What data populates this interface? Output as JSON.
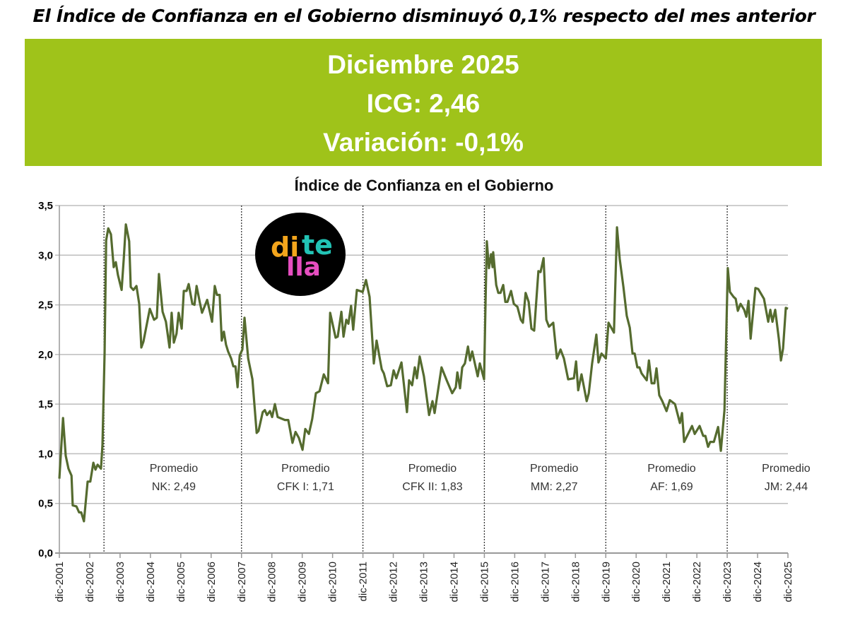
{
  "headline": "El Índice de Confianza en el Gobierno disminuyó 0,1% respecto del mes anterior",
  "banner": {
    "line1": "Diciembre 2025",
    "line2": "ICG: 2,46",
    "line3": "Variación: -0,1%",
    "color": "#9fc31a"
  },
  "logo": {
    "part1": "di",
    "part2": "te",
    "part3": "lla",
    "colors": [
      "#f4a51c",
      "#22c3b5",
      "#e64ec0"
    ]
  },
  "chart_data": {
    "type": "line",
    "title": "Índice de Confianza en el Gobierno",
    "xlabel": "",
    "ylabel": "",
    "ylim": [
      0,
      3.5
    ],
    "xlim": [
      2001.92,
      2025.92
    ],
    "yticks": [
      0,
      0.5,
      1.0,
      1.5,
      2.0,
      2.5,
      3.0,
      3.5
    ],
    "ytick_labels": [
      "0,0",
      "0,5",
      "1,0",
      "1,5",
      "2,0",
      "2,5",
      "3,0",
      "3,5"
    ],
    "xtick_labels": [
      "dic-2001",
      "dic-2002",
      "dic-2003",
      "dic-2004",
      "dic-2005",
      "dic-2006",
      "dic-2007",
      "dic-2008",
      "dic-2009",
      "dic-2010",
      "dic-2011",
      "dic-2012",
      "dic-2013",
      "dic-2014",
      "dic-2015",
      "dic-2016",
      "dic-2017",
      "dic-2018",
      "dic-2019",
      "dic-2020",
      "dic-2021",
      "dic-2022",
      "dic-2023",
      "dic-2024",
      "dic-2025"
    ],
    "grid": "horizontal",
    "line_color": "#556b2f",
    "period_separators": [
      2003.39,
      2007.92,
      2011.92,
      2015.92,
      2019.92,
      2023.92
    ],
    "annotations": [
      {
        "x": 2005.69,
        "line1": "Promedio",
        "line2": "NK: 2,49"
      },
      {
        "x": 2010.03,
        "line1": "Promedio",
        "line2": "CFK I: 1,71"
      },
      {
        "x": 2014.21,
        "line1": "Promedio",
        "line2": "CFK II: 1,83"
      },
      {
        "x": 2018.22,
        "line1": "Promedio",
        "line2": "MM: 2,27"
      },
      {
        "x": 2022.09,
        "line1": "Promedio",
        "line2": "AF: 1,69"
      },
      {
        "x": 2025.86,
        "line1": "Promedio",
        "line2": "JM: 2,44"
      }
    ],
    "series": [
      {
        "name": "ICG",
        "points": [
          [
            2001.92,
            0.75
          ],
          [
            2002.04,
            1.36
          ],
          [
            2002.13,
            0.98
          ],
          [
            2002.22,
            0.85
          ],
          [
            2002.32,
            0.78
          ],
          [
            2002.36,
            0.48
          ],
          [
            2002.48,
            0.47
          ],
          [
            2002.57,
            0.41
          ],
          [
            2002.64,
            0.41
          ],
          [
            2002.73,
            0.32
          ],
          [
            2002.85,
            0.72
          ],
          [
            2002.94,
            0.72
          ],
          [
            2003.04,
            0.91
          ],
          [
            2003.11,
            0.84
          ],
          [
            2003.18,
            0.89
          ],
          [
            2003.29,
            0.85
          ],
          [
            2003.34,
            1.09
          ],
          [
            2003.41,
            2.01
          ],
          [
            2003.46,
            3.15
          ],
          [
            2003.53,
            3.27
          ],
          [
            2003.62,
            3.21
          ],
          [
            2003.71,
            2.88
          ],
          [
            2003.78,
            2.93
          ],
          [
            2003.85,
            2.8
          ],
          [
            2003.97,
            2.65
          ],
          [
            2004.04,
            2.96
          ],
          [
            2004.11,
            3.31
          ],
          [
            2004.22,
            3.14
          ],
          [
            2004.27,
            2.68
          ],
          [
            2004.36,
            2.65
          ],
          [
            2004.46,
            2.69
          ],
          [
            2004.55,
            2.51
          ],
          [
            2004.62,
            2.07
          ],
          [
            2004.69,
            2.13
          ],
          [
            2004.9,
            2.46
          ],
          [
            2005.04,
            2.35
          ],
          [
            2005.13,
            2.37
          ],
          [
            2005.2,
            2.81
          ],
          [
            2005.32,
            2.43
          ],
          [
            2005.43,
            2.33
          ],
          [
            2005.55,
            2.07
          ],
          [
            2005.62,
            2.42
          ],
          [
            2005.69,
            2.12
          ],
          [
            2005.78,
            2.21
          ],
          [
            2005.85,
            2.42
          ],
          [
            2005.95,
            2.26
          ],
          [
            2006.02,
            2.64
          ],
          [
            2006.11,
            2.64
          ],
          [
            2006.18,
            2.71
          ],
          [
            2006.3,
            2.51
          ],
          [
            2006.37,
            2.5
          ],
          [
            2006.44,
            2.69
          ],
          [
            2006.55,
            2.52
          ],
          [
            2006.62,
            2.42
          ],
          [
            2006.79,
            2.55
          ],
          [
            2006.95,
            2.33
          ],
          [
            2007.04,
            2.69
          ],
          [
            2007.11,
            2.6
          ],
          [
            2007.2,
            2.6
          ],
          [
            2007.27,
            2.14
          ],
          [
            2007.34,
            2.23
          ],
          [
            2007.41,
            2.1
          ],
          [
            2007.48,
            2.03
          ],
          [
            2007.58,
            1.96
          ],
          [
            2007.65,
            1.88
          ],
          [
            2007.72,
            1.88
          ],
          [
            2007.79,
            1.67
          ],
          [
            2007.86,
            1.99
          ],
          [
            2007.95,
            2.05
          ],
          [
            2008.02,
            2.37
          ],
          [
            2008.14,
            1.96
          ],
          [
            2008.28,
            1.75
          ],
          [
            2008.42,
            1.21
          ],
          [
            2008.48,
            1.23
          ],
          [
            2008.62,
            1.42
          ],
          [
            2008.69,
            1.44
          ],
          [
            2008.76,
            1.39
          ],
          [
            2008.86,
            1.43
          ],
          [
            2008.93,
            1.37
          ],
          [
            2009.02,
            1.5
          ],
          [
            2009.11,
            1.37
          ],
          [
            2009.35,
            1.34
          ],
          [
            2009.46,
            1.34
          ],
          [
            2009.6,
            1.11
          ],
          [
            2009.7,
            1.22
          ],
          [
            2009.81,
            1.16
          ],
          [
            2009.93,
            1.04
          ],
          [
            2010.02,
            1.25
          ],
          [
            2010.14,
            1.2
          ],
          [
            2010.25,
            1.35
          ],
          [
            2010.37,
            1.61
          ],
          [
            2010.49,
            1.63
          ],
          [
            2010.63,
            1.8
          ],
          [
            2010.77,
            1.71
          ],
          [
            2010.84,
            2.42
          ],
          [
            2011.02,
            2.17
          ],
          [
            2011.09,
            2.18
          ],
          [
            2011.21,
            2.43
          ],
          [
            2011.28,
            2.18
          ],
          [
            2011.37,
            2.35
          ],
          [
            2011.44,
            2.31
          ],
          [
            2011.53,
            2.49
          ],
          [
            2011.6,
            2.25
          ],
          [
            2011.72,
            2.65
          ],
          [
            2011.91,
            2.63
          ],
          [
            2012.02,
            2.75
          ],
          [
            2012.14,
            2.58
          ],
          [
            2012.28,
            1.91
          ],
          [
            2012.37,
            2.14
          ],
          [
            2012.54,
            1.85
          ],
          [
            2012.61,
            1.81
          ],
          [
            2012.72,
            1.68
          ],
          [
            2012.84,
            1.69
          ],
          [
            2012.93,
            1.84
          ],
          [
            2013.02,
            1.76
          ],
          [
            2013.19,
            1.92
          ],
          [
            2013.37,
            1.42
          ],
          [
            2013.44,
            1.74
          ],
          [
            2013.54,
            1.69
          ],
          [
            2013.63,
            1.87
          ],
          [
            2013.7,
            1.76
          ],
          [
            2013.79,
            1.98
          ],
          [
            2013.93,
            1.78
          ],
          [
            2014.1,
            1.39
          ],
          [
            2014.21,
            1.53
          ],
          [
            2014.28,
            1.41
          ],
          [
            2014.51,
            1.87
          ],
          [
            2014.68,
            1.74
          ],
          [
            2014.86,
            1.61
          ],
          [
            2014.98,
            1.67
          ],
          [
            2015.03,
            1.82
          ],
          [
            2015.12,
            1.66
          ],
          [
            2015.19,
            1.87
          ],
          [
            2015.28,
            1.91
          ],
          [
            2015.38,
            2.08
          ],
          [
            2015.45,
            1.94
          ],
          [
            2015.52,
            2.03
          ],
          [
            2015.7,
            1.78
          ],
          [
            2015.77,
            1.91
          ],
          [
            2015.91,
            1.75
          ],
          [
            2015.96,
            2.53
          ],
          [
            2016.0,
            3.14
          ],
          [
            2016.07,
            2.87
          ],
          [
            2016.14,
            3.01
          ],
          [
            2016.19,
            2.88
          ],
          [
            2016.21,
            3.03
          ],
          [
            2016.31,
            2.7
          ],
          [
            2016.38,
            2.62
          ],
          [
            2016.45,
            2.62
          ],
          [
            2016.54,
            2.7
          ],
          [
            2016.61,
            2.53
          ],
          [
            2016.68,
            2.53
          ],
          [
            2016.8,
            2.64
          ],
          [
            2016.89,
            2.51
          ],
          [
            2017.01,
            2.48
          ],
          [
            2017.12,
            2.35
          ],
          [
            2017.19,
            2.32
          ],
          [
            2017.28,
            2.62
          ],
          [
            2017.38,
            2.53
          ],
          [
            2017.47,
            2.26
          ],
          [
            2017.56,
            2.24
          ],
          [
            2017.7,
            2.84
          ],
          [
            2017.77,
            2.83
          ],
          [
            2017.87,
            2.97
          ],
          [
            2017.96,
            2.35
          ],
          [
            2018.05,
            2.28
          ],
          [
            2018.19,
            2.32
          ],
          [
            2018.31,
            1.96
          ],
          [
            2018.43,
            2.05
          ],
          [
            2018.54,
            1.96
          ],
          [
            2018.68,
            1.75
          ],
          [
            2018.87,
            1.76
          ],
          [
            2018.94,
            1.93
          ],
          [
            2019.01,
            1.64
          ],
          [
            2019.12,
            1.8
          ],
          [
            2019.29,
            1.53
          ],
          [
            2019.36,
            1.61
          ],
          [
            2019.47,
            1.91
          ],
          [
            2019.61,
            2.2
          ],
          [
            2019.68,
            1.92
          ],
          [
            2019.78,
            2.01
          ],
          [
            2019.92,
            1.96
          ],
          [
            2020.01,
            2.32
          ],
          [
            2020.19,
            2.22
          ],
          [
            2020.29,
            3.28
          ],
          [
            2020.38,
            2.96
          ],
          [
            2020.5,
            2.68
          ],
          [
            2020.61,
            2.39
          ],
          [
            2020.71,
            2.27
          ],
          [
            2020.8,
            2.01
          ],
          [
            2020.87,
            2.01
          ],
          [
            2020.96,
            1.87
          ],
          [
            2021.03,
            1.87
          ],
          [
            2021.1,
            1.81
          ],
          [
            2021.27,
            1.74
          ],
          [
            2021.34,
            1.94
          ],
          [
            2021.43,
            1.71
          ],
          [
            2021.52,
            1.71
          ],
          [
            2021.59,
            1.86
          ],
          [
            2021.68,
            1.59
          ],
          [
            2021.78,
            1.53
          ],
          [
            2021.92,
            1.43
          ],
          [
            2022.03,
            1.54
          ],
          [
            2022.2,
            1.5
          ],
          [
            2022.36,
            1.31
          ],
          [
            2022.43,
            1.41
          ],
          [
            2022.5,
            1.12
          ],
          [
            2022.76,
            1.28
          ],
          [
            2022.85,
            1.2
          ],
          [
            2023.01,
            1.28
          ],
          [
            2023.13,
            1.18
          ],
          [
            2023.2,
            1.18
          ],
          [
            2023.29,
            1.07
          ],
          [
            2023.36,
            1.12
          ],
          [
            2023.48,
            1.12
          ],
          [
            2023.62,
            1.27
          ],
          [
            2023.71,
            1.03
          ],
          [
            2023.83,
            1.44
          ],
          [
            2023.94,
            2.87
          ],
          [
            2024.01,
            2.63
          ],
          [
            2024.13,
            2.58
          ],
          [
            2024.2,
            2.56
          ],
          [
            2024.27,
            2.44
          ],
          [
            2024.36,
            2.51
          ],
          [
            2024.48,
            2.45
          ],
          [
            2024.55,
            2.38
          ],
          [
            2024.62,
            2.54
          ],
          [
            2024.69,
            2.16
          ],
          [
            2024.85,
            2.67
          ],
          [
            2024.94,
            2.66
          ],
          [
            2025.13,
            2.56
          ],
          [
            2025.27,
            2.33
          ],
          [
            2025.34,
            2.45
          ],
          [
            2025.41,
            2.33
          ],
          [
            2025.5,
            2.45
          ],
          [
            2025.62,
            2.16
          ],
          [
            2025.69,
            1.94
          ],
          [
            2025.76,
            2.06
          ],
          [
            2025.85,
            2.47
          ],
          [
            2025.92,
            2.46
          ]
        ]
      }
    ]
  }
}
